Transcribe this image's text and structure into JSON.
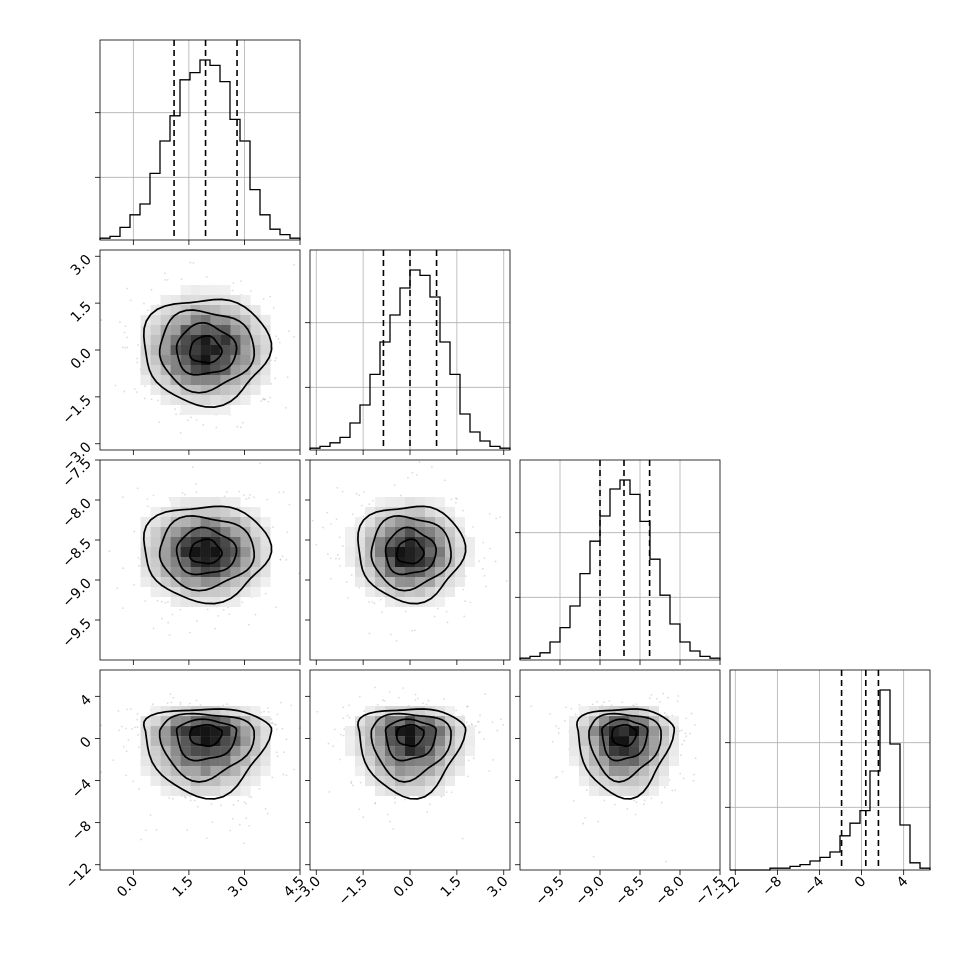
{
  "chart_data": {
    "type": "corner",
    "grid": true,
    "n_params": 4,
    "quantile_levels": [
      0.16,
      0.5,
      0.84
    ],
    "parameters": [
      {
        "mean": 1.95,
        "std": 0.85,
        "range": [
          -0.9,
          4.5
        ],
        "ticks": [
          0.0,
          1.5,
          3.0,
          4.5
        ],
        "tick_labels": [
          "0.0",
          "1.5",
          "3.0",
          "4.5"
        ],
        "quantiles": [
          1.1,
          1.95,
          2.8
        ]
      },
      {
        "mean": 0.0,
        "std": 0.85,
        "range": [
          -3.2,
          3.2
        ],
        "ticks": [
          -3.0,
          -1.5,
          0.0,
          1.5,
          3.0
        ],
        "tick_labels": [
          "−3.0",
          "−1.5",
          "0.0",
          "1.5",
          "3.0"
        ],
        "quantiles": [
          -0.85,
          0.0,
          0.85
        ]
      },
      {
        "mean": -8.7,
        "std": 0.3,
        "range": [
          -10.0,
          -7.5
        ],
        "ticks": [
          -9.5,
          -9.0,
          -8.5,
          -8.0,
          -7.5
        ],
        "tick_labels": [
          "−9.5",
          "−9.0",
          "−8.5",
          "−8.0",
          "−7.5"
        ],
        "quantiles": [
          -9.0,
          -8.7,
          -8.38
        ]
      },
      {
        "mean": 0.0,
        "std": 2.0,
        "range": [
          -12.5,
          6.5
        ],
        "ticks": [
          -12,
          -8,
          -4,
          0,
          4
        ],
        "tick_labels": [
          "−12",
          "−8",
          "−4",
          "0",
          "4"
        ],
        "quantiles": [
          -1.9,
          0.4,
          1.6
        ]
      }
    ],
    "histograms": [
      {
        "bins": 20,
        "counts": [
          0.01,
          0.02,
          0.07,
          0.14,
          0.2,
          0.37,
          0.55,
          0.69,
          0.89,
          0.93,
          1.0,
          0.97,
          0.88,
          0.67,
          0.55,
          0.28,
          0.14,
          0.06,
          0.03,
          0.01
        ]
      },
      {
        "bins": 20,
        "counts": [
          0.01,
          0.02,
          0.04,
          0.07,
          0.15,
          0.25,
          0.42,
          0.6,
          0.75,
          0.9,
          1.0,
          0.97,
          0.85,
          0.6,
          0.42,
          0.2,
          0.1,
          0.05,
          0.02,
          0.01
        ]
      },
      {
        "bins": 20,
        "counts": [
          0.01,
          0.02,
          0.04,
          0.1,
          0.18,
          0.3,
          0.48,
          0.66,
          0.8,
          0.95,
          1.0,
          0.92,
          0.77,
          0.56,
          0.36,
          0.2,
          0.1,
          0.05,
          0.02,
          0.01
        ]
      },
      {
        "bins": 20,
        "counts": [
          0.0,
          0.0,
          0.0,
          0.0,
          0.01,
          0.01,
          0.02,
          0.03,
          0.05,
          0.07,
          0.1,
          0.19,
          0.26,
          0.33,
          0.55,
          1.0,
          0.7,
          0.25,
          0.04,
          0.01
        ]
      }
    ],
    "pairs": [
      {
        "x": 0,
        "y": 1,
        "center": [
          1.95,
          0.0
        ],
        "contour_scales": [
          0.5,
          0.95,
          1.5,
          2.0
        ]
      },
      {
        "x": 0,
        "y": 2,
        "center": [
          1.95,
          -8.65
        ],
        "contour_scales": [
          0.5,
          0.95,
          1.5,
          2.0
        ]
      },
      {
        "x": 1,
        "y": 2,
        "center": [
          0.0,
          -8.65
        ],
        "contour_scales": [
          0.5,
          0.95,
          1.5,
          2.0
        ]
      },
      {
        "x": 0,
        "y": 3,
        "center": [
          1.95,
          0.7
        ],
        "contour_scales": [
          0.5,
          0.95,
          1.5,
          2.0
        ]
      },
      {
        "x": 1,
        "y": 3,
        "center": [
          0.0,
          0.7
        ],
        "contour_scales": [
          0.5,
          0.95,
          1.5,
          2.0
        ]
      },
      {
        "x": 2,
        "y": 3,
        "center": [
          -8.7,
          0.7
        ],
        "contour_scales": [
          0.5,
          0.95,
          1.5,
          2.0
        ]
      }
    ]
  }
}
